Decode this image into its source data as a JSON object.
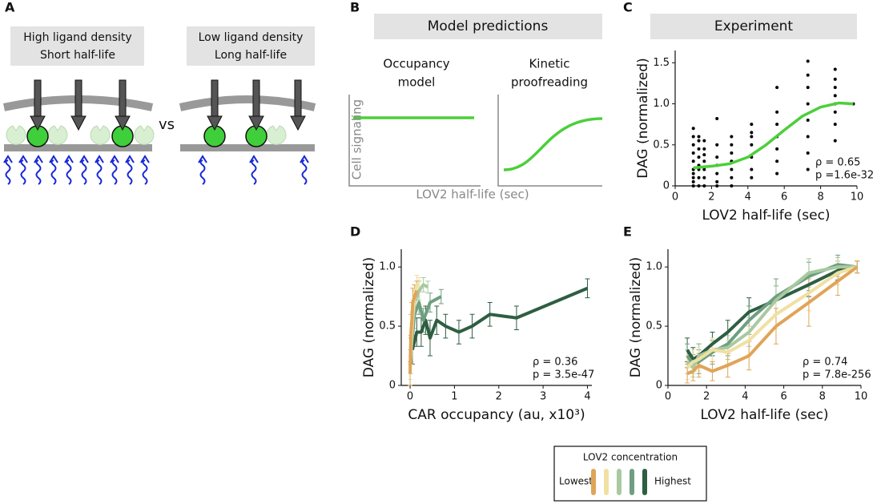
{
  "panel_labels": [
    "A",
    "B",
    "C",
    "D",
    "E"
  ],
  "panel_a": {
    "left": [
      "High ligand density",
      "Short half-life"
    ],
    "right": [
      "Low ligand density",
      "Long half-life"
    ],
    "versus": "vs"
  },
  "panel_b": {
    "title": "Model predictions",
    "occupancy": [
      "Occupancy",
      "model"
    ],
    "kinetic": [
      "Kinetic",
      "proofreading"
    ],
    "ylabel": "Cell signaling",
    "xlabel": "LOV2 half-life (sec)"
  },
  "chart_data": [
    {
      "type": "scatter",
      "title": "Experiment",
      "xlabel": "LOV2 half-life (sec)",
      "ylabel": "DAG (normalized)",
      "x": [
        1,
        1,
        1,
        1,
        1,
        1,
        1,
        1,
        1,
        1,
        1.3,
        1.3,
        1.3,
        1.3,
        1.3,
        1.3,
        1.3,
        1.3,
        1.6,
        1.6,
        1.6,
        1.6,
        1.6,
        1.6,
        1.6,
        2.3,
        2.3,
        2.3,
        2.3,
        2.3,
        2.3,
        2.3,
        3.1,
        3.1,
        3.1,
        3.1,
        3.1,
        3.1,
        3.1,
        4.2,
        4.2,
        4.2,
        4.2,
        4.2,
        4.2,
        4.2,
        5.6,
        5.6,
        5.6,
        5.6,
        5.6,
        5.6,
        5.6,
        7.3,
        7.3,
        7.3,
        7.3,
        7.3,
        7.3,
        7.3,
        7.3,
        8.8,
        8.8,
        8.8,
        8.8,
        8.8,
        8.8,
        8.8,
        8.8,
        9.8
      ],
      "values": [
        0,
        0.05,
        0.1,
        0.15,
        0.2,
        0.3,
        0.4,
        0.5,
        0.6,
        0.7,
        0,
        0.1,
        0.2,
        0.25,
        0.35,
        0.45,
        0.55,
        0.6,
        0,
        0.1,
        0.2,
        0.3,
        0.38,
        0.45,
        0.55,
        0,
        0.05,
        0.15,
        0.25,
        0.35,
        0.5,
        0.82,
        0,
        0.1,
        0.2,
        0.3,
        0.4,
        0.5,
        0.6,
        0.1,
        0.2,
        0.35,
        0.5,
        0.6,
        0.65,
        0.75,
        0.15,
        0.3,
        0.45,
        0.6,
        0.75,
        0.9,
        1.2,
        0.2,
        0.4,
        0.6,
        0.8,
        1.0,
        1.2,
        1.35,
        1.52,
        0.55,
        0.75,
        0.9,
        1.0,
        1.1,
        1.2,
        1.3,
        1.42,
        1.0
      ],
      "color": "#000000",
      "fit": {
        "x": [
          1,
          2,
          3,
          4,
          5,
          6,
          7,
          8,
          9,
          9.8
        ],
        "values": [
          0.22,
          0.24,
          0.27,
          0.35,
          0.5,
          0.68,
          0.85,
          0.96,
          1.01,
          1.0
        ],
        "color": "#4ccf3a"
      },
      "annotations": [
        "ρ = 0.65",
        "p =1.6e-32"
      ],
      "xlim": [
        0,
        10
      ],
      "xticks": [
        0,
        2,
        4,
        6,
        8,
        10
      ],
      "ylim": [
        0,
        1.65
      ],
      "yticks": [
        0,
        0.5,
        {
          "value": 1,
          "label": "1.0"
        },
        1.5
      ]
    },
    {
      "type": "line",
      "xlabel": "CAR occupancy (au, x10³)",
      "ylabel": "DAG (normalized)",
      "annotations": [
        "ρ = 0.36",
        "p = 3.5e-47"
      ],
      "xlim": [
        -0.2,
        4.1
      ],
      "xticks": [
        0,
        1,
        2,
        3,
        4
      ],
      "ylim": [
        0,
        1.15
      ],
      "yticks": [
        0,
        0.5,
        {
          "value": 1,
          "label": "1.0"
        }
      ],
      "series": [
        {
          "color": "#e0a458",
          "x": [
            0,
            0.01,
            0.02,
            0.04,
            0.06,
            0.1,
            0.15
          ],
          "values": [
            0.1,
            0.3,
            0.45,
            0.55,
            0.7,
            0.75,
            0.8
          ],
          "errors": [
            0.1,
            0.12,
            0.15,
            0.15,
            0.12,
            0.1,
            0.08
          ]
        },
        {
          "color": "#f0e0a2",
          "x": [
            0,
            0.03,
            0.06,
            0.1,
            0.15,
            0.2
          ],
          "values": [
            0.15,
            0.4,
            0.6,
            0.75,
            0.85,
            0.85
          ],
          "errors": [
            0.1,
            0.12,
            0.12,
            0.1,
            0.08,
            0.06
          ]
        },
        {
          "color": "#a9c9a0",
          "x": [
            0.01,
            0.05,
            0.1,
            0.2,
            0.3,
            0.4
          ],
          "values": [
            0.2,
            0.5,
            0.7,
            0.8,
            0.85,
            0.83
          ],
          "errors": [
            0.1,
            0.12,
            0.1,
            0.08,
            0.06,
            0.05
          ]
        },
        {
          "color": "#6f9f80",
          "x": [
            0.02,
            0.1,
            0.2,
            0.3,
            0.45,
            0.7
          ],
          "values": [
            0.3,
            0.6,
            0.7,
            0.55,
            0.7,
            0.75
          ],
          "errors": [
            0.1,
            0.12,
            0.1,
            0.1,
            0.08,
            0.06
          ]
        },
        {
          "color": "#2e5e42",
          "x": [
            0.05,
            0.15,
            0.25,
            0.35,
            0.45,
            0.6,
            0.8,
            1.1,
            1.4,
            1.8,
            2.4,
            4.0
          ],
          "values": [
            0.3,
            0.45,
            0.45,
            0.55,
            0.4,
            0.55,
            0.5,
            0.45,
            0.5,
            0.6,
            0.57,
            0.82
          ],
          "errors": [
            0.12,
            0.12,
            0.12,
            0.12,
            0.15,
            0.12,
            0.1,
            0.1,
            0.1,
            0.1,
            0.1,
            0.08
          ]
        }
      ]
    },
    {
      "type": "line",
      "xlabel": "LOV2 half-life (sec)",
      "ylabel": "DAG (normalized)",
      "annotations": [
        "ρ = 0.74",
        "p = 7.8e-256"
      ],
      "xlim": [
        0,
        10
      ],
      "xticks": [
        0,
        2,
        4,
        6,
        8,
        10
      ],
      "ylim": [
        0,
        1.15
      ],
      "yticks": [
        0,
        0.5,
        {
          "value": 1,
          "label": "1.0"
        }
      ],
      "series": [
        {
          "color": "#e0a458",
          "x": [
            1,
            1.3,
            1.6,
            2.3,
            3.1,
            4.2,
            5.6,
            7.3,
            8.8,
            9.8
          ],
          "values": [
            0.1,
            0.12,
            0.17,
            0.12,
            0.17,
            0.25,
            0.5,
            0.7,
            0.88,
            1.0
          ],
          "errors": [
            0.08,
            0.08,
            0.1,
            0.08,
            0.1,
            0.12,
            0.15,
            0.2,
            0.12,
            0.05
          ]
        },
        {
          "color": "#f0e0a2",
          "x": [
            1,
            1.3,
            1.6,
            2.3,
            3.1,
            4.2,
            5.6,
            7.3,
            8.8,
            9.8
          ],
          "values": [
            0.15,
            0.2,
            0.22,
            0.3,
            0.28,
            0.38,
            0.6,
            0.78,
            0.95,
            1.0
          ],
          "errors": [
            0.1,
            0.1,
            0.1,
            0.1,
            0.1,
            0.12,
            0.12,
            0.15,
            0.1,
            0.05
          ]
        },
        {
          "color": "#a9c9a0",
          "x": [
            1,
            1.3,
            1.6,
            2.3,
            3.1,
            4.2,
            5.6,
            7.3,
            8.8,
            9.8
          ],
          "values": [
            0.2,
            0.15,
            0.25,
            0.3,
            0.32,
            0.45,
            0.72,
            0.95,
            1.0,
            1.0
          ],
          "errors": [
            0.1,
            0.08,
            0.1,
            0.1,
            0.1,
            0.12,
            0.12,
            0.12,
            0.08,
            0.05
          ]
        },
        {
          "color": "#6f9f80",
          "x": [
            1,
            1.3,
            1.6,
            2.3,
            3.1,
            4.2,
            5.6,
            7.3,
            8.8,
            9.8
          ],
          "values": [
            0.25,
            0.18,
            0.2,
            0.28,
            0.35,
            0.55,
            0.75,
            0.92,
            1.02,
            1.0
          ],
          "errors": [
            0.1,
            0.08,
            0.1,
            0.1,
            0.1,
            0.12,
            0.15,
            0.12,
            0.08,
            0.05
          ]
        },
        {
          "color": "#2e5e42",
          "x": [
            1,
            1.3,
            1.6,
            2.3,
            3.1,
            4.2,
            5.6,
            7.3,
            8.8,
            9.8
          ],
          "values": [
            0.3,
            0.22,
            0.25,
            0.35,
            0.45,
            0.62,
            0.72,
            0.85,
            0.97,
            1.0
          ],
          "errors": [
            0.1,
            0.1,
            0.1,
            0.1,
            0.1,
            0.12,
            0.12,
            0.1,
            0.08,
            0.05
          ]
        }
      ]
    }
  ],
  "legend": {
    "title": "LOV2 concentration",
    "low": "Lowest",
    "high": "Highest"
  }
}
